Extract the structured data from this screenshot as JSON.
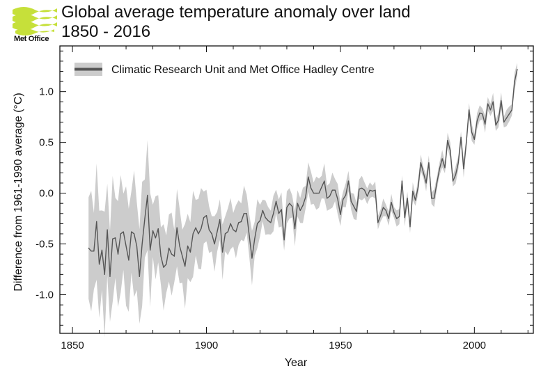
{
  "logo": {
    "brand": "Met Office",
    "color": "#c6e03a"
  },
  "chart_data": {
    "type": "line",
    "title": "Global average temperature anomaly over land",
    "subtitle": "1850 - 2016",
    "xlabel": "Year",
    "ylabel": "Difference from 1961-1990 average (°C)",
    "xlim": [
      1845.3,
      2022
    ],
    "ylim": [
      -1.38,
      1.45
    ],
    "xticks": [
      1850,
      1900,
      1950,
      2000
    ],
    "xtick_labels": [
      "1850",
      "1900",
      "1950",
      "2000"
    ],
    "yticks": [
      -1.0,
      -0.5,
      0.0,
      0.5,
      1.0
    ],
    "ytick_labels": [
      "-1.0",
      "-0.5",
      "0.0",
      "0.5",
      "1.0"
    ],
    "grid": false,
    "legend": {
      "position": "top-left",
      "entries": [
        "Climatic Research Unit and Met Office Hadley Centre"
      ]
    },
    "series": [
      {
        "name": "Climatic Research Unit and Met Office Hadley Centre",
        "line_color": "#555555",
        "band_color": "#cccccc",
        "start_year": 1856,
        "values": [
          -0.54,
          -0.57,
          -0.57,
          -0.28,
          -0.7,
          -0.56,
          -0.8,
          -0.36,
          -0.82,
          -0.45,
          -0.44,
          -0.6,
          -0.4,
          -0.38,
          -0.52,
          -0.66,
          -0.38,
          -0.4,
          -0.52,
          -0.82,
          -0.5,
          -0.25,
          -0.02,
          -0.56,
          -0.37,
          -0.44,
          -0.35,
          -0.62,
          -0.73,
          -0.7,
          -0.54,
          -0.6,
          -0.62,
          -0.34,
          -0.52,
          -0.62,
          -0.72,
          -0.52,
          -0.58,
          -0.4,
          -0.34,
          -0.4,
          -0.35,
          -0.24,
          -0.22,
          -0.36,
          -0.4,
          -0.5,
          -0.38,
          -0.26,
          -0.58,
          -0.4,
          -0.38,
          -0.3,
          -0.36,
          -0.38,
          -0.29,
          -0.28,
          -0.2,
          -0.2,
          -0.42,
          -0.64,
          -0.45,
          -0.3,
          -0.27,
          -0.17,
          -0.24,
          -0.27,
          -0.29,
          -0.2,
          -0.08,
          -0.2,
          -0.16,
          -0.46,
          -0.14,
          -0.1,
          -0.13,
          -0.35,
          -0.1,
          -0.17,
          -0.12,
          -0.04,
          0.16,
          0.05,
          0.0,
          0.0,
          0.0,
          0.06,
          0.12,
          -0.05,
          -0.03,
          0.03,
          0.03,
          -0.06,
          -0.21,
          -0.06,
          -0.02,
          0.12,
          -0.08,
          -0.13,
          -0.18,
          0.04,
          0.05,
          0.03,
          -0.03,
          0.03,
          0.02,
          0.03,
          -0.29,
          -0.22,
          -0.14,
          -0.17,
          -0.25,
          -0.09,
          -0.19,
          -0.25,
          -0.23,
          0.12,
          -0.24,
          -0.05,
          -0.33,
          0.02,
          -0.07,
          0.06,
          0.3,
          0.2,
          0.1,
          0.3,
          -0.05,
          -0.05,
          0.1,
          0.24,
          0.34,
          0.25,
          0.52,
          0.42,
          0.12,
          0.18,
          0.3,
          0.55,
          0.24,
          0.5,
          0.82,
          0.6,
          0.53,
          0.71,
          0.79,
          0.78,
          0.68,
          0.88,
          0.82,
          0.9,
          0.67,
          0.72,
          0.91,
          0.7,
          0.74,
          0.78,
          0.82,
          1.1,
          1.22
        ],
        "uncertainty_half_width": [
          {
            "from": 1856,
            "to": 1879,
            "value": 0.5
          },
          {
            "from": 1880,
            "to": 1899,
            "value": 0.34
          },
          {
            "from": 1900,
            "to": 1919,
            "value": 0.22
          },
          {
            "from": 1920,
            "to": 1949,
            "value": 0.14
          },
          {
            "from": 1950,
            "to": 1959,
            "value": 0.1
          },
          {
            "from": 1960,
            "to": 2016,
            "value": 0.07
          }
        ]
      }
    ]
  }
}
